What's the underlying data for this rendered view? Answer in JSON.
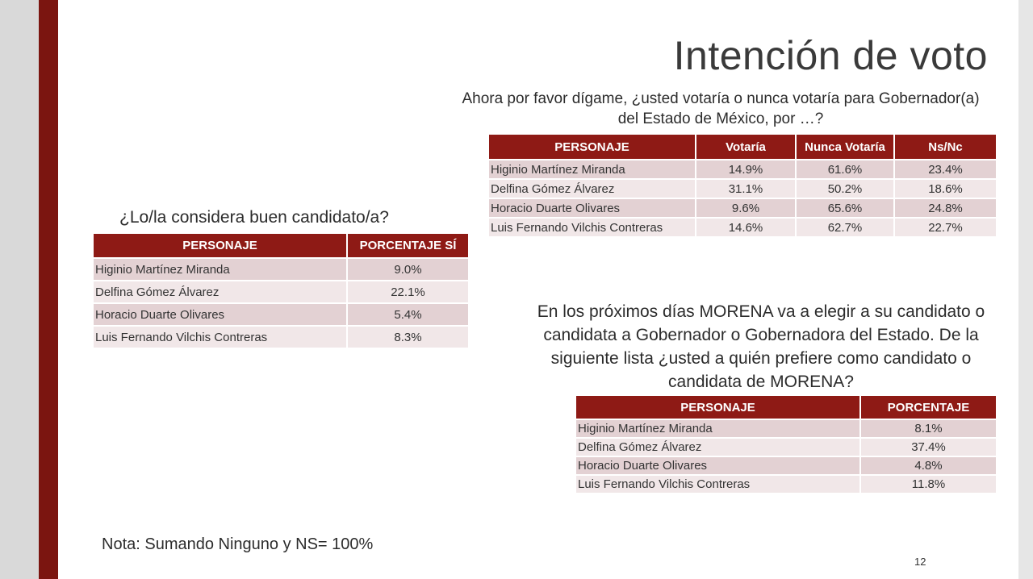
{
  "slide": {
    "title": "Intención de voto",
    "question_vote": "Ahora por favor dígame, ¿usted votaría o nunca votaría para Gobernador(a) del Estado de México, por …?",
    "question_good": "¿Lo/la considera buen candidato/a?",
    "question_morena": "En los próximos días MORENA va a elegir a su candidato o candidata a Gobernador o Gobernadora del Estado.  De la siguiente lista ¿usted a quién prefiere como candidato o candidata de MORENA?",
    "note": "Nota: Sumando Ninguno y NS= 100%",
    "page_number": "12"
  },
  "vote_table": {
    "headers": [
      "PERSONAJE",
      "Votaría",
      "Nunca Votaría",
      "Ns/Nc"
    ],
    "rows": [
      [
        "Higinio Martínez Miranda",
        "14.9%",
        "61.6%",
        "23.4%"
      ],
      [
        "Delfina Gómez Álvarez",
        "31.1%",
        "50.2%",
        "18.6%"
      ],
      [
        "Horacio Duarte Olivares",
        "9.6%",
        "65.6%",
        "24.8%"
      ],
      [
        "Luis Fernando Vilchis Contreras",
        "14.6%",
        "62.7%",
        "22.7%"
      ]
    ]
  },
  "good_table": {
    "headers": [
      "PERSONAJE",
      "PORCENTAJE SÍ"
    ],
    "rows": [
      [
        "Higinio Martínez Miranda",
        "9.0%"
      ],
      [
        "Delfina Gómez Álvarez",
        "22.1%"
      ],
      [
        "Horacio Duarte Olivares",
        "5.4%"
      ],
      [
        "Luis Fernando Vilchis Contreras",
        "8.3%"
      ]
    ]
  },
  "morena_table": {
    "headers": [
      "PERSONAJE",
      "PORCENTAJE"
    ],
    "rows": [
      [
        "Higinio Martínez Miranda",
        "8.1%"
      ],
      [
        "Delfina Gómez Álvarez",
        "37.4%"
      ],
      [
        "Horacio Duarte Olivares",
        "4.8%"
      ],
      [
        "Luis Fernando Vilchis Contreras",
        "11.8%"
      ]
    ]
  },
  "colors": {
    "accent_stripe": "#7b1510",
    "header_fill": "#8e1a15",
    "row_dark": "#e3d1d3",
    "row_light": "#f1e7e8"
  }
}
